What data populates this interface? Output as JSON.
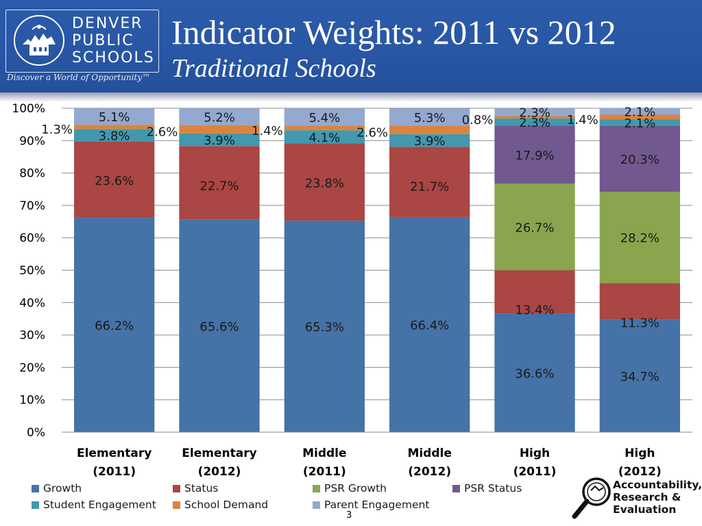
{
  "header": {
    "title": "Indicator Weights: 2011 vs 2012",
    "subtitle": "Traditional Schools",
    "logo_lines": [
      "DENVER",
      "PUBLIC",
      "SCHOOLS"
    ],
    "logo_tagline": "Discover a World of Opportunity™"
  },
  "footer": {
    "page_number": "3",
    "are_logo_lines": [
      "Accountability,",
      "Research &",
      "Evaluation"
    ]
  },
  "colors": {
    "header_bg": "#2856a4",
    "Growth": "#4572a7",
    "Status": "#aa4643",
    "PSR Growth": "#89a54e",
    "PSR Status": "#71588f",
    "Student Engagement": "#4198af",
    "School Demand": "#db843d",
    "Parent Engagement": "#93a9cf"
  },
  "chart_data": {
    "type": "bar",
    "stacked": true,
    "categories": [
      "Elementary\n(2011)",
      "Elementary\n(2012)",
      "Middle\n(2011)",
      "Middle\n(2012)",
      "High\n(2011)",
      "High\n(2012)"
    ],
    "series": [
      {
        "name": "Growth",
        "values": [
          66.2,
          65.6,
          65.3,
          66.4,
          36.6,
          34.7
        ],
        "labels": [
          "66.2%",
          "65.6%",
          "65.3%",
          "66.4%",
          "36.6%",
          "34.7%"
        ]
      },
      {
        "name": "Status",
        "values": [
          23.6,
          22.7,
          23.8,
          21.7,
          13.4,
          11.3
        ],
        "labels": [
          "23.6%",
          "22.7%",
          "23.8%",
          "21.7%",
          "13.4%",
          "11.3%"
        ]
      },
      {
        "name": "PSR Growth",
        "values": [
          0,
          0,
          0,
          0,
          26.7,
          28.2
        ],
        "labels": [
          "",
          "",
          "",
          "",
          "26.7%",
          "28.2%"
        ]
      },
      {
        "name": "PSR Status",
        "values": [
          0,
          0,
          0,
          0,
          17.9,
          20.3
        ],
        "labels": [
          "",
          "",
          "",
          "",
          "17.9%",
          "20.3%"
        ]
      },
      {
        "name": "Student Engagement",
        "values": [
          3.8,
          3.9,
          4.1,
          3.9,
          2.3,
          2.1
        ],
        "labels": [
          "3.8%",
          "3.9%",
          "4.1%",
          "3.9%",
          "2.3%",
          "2.1%"
        ]
      },
      {
        "name": "School Demand",
        "values": [
          1.3,
          2.6,
          1.4,
          2.6,
          0.8,
          1.4
        ],
        "labels": [
          "1.3%",
          "2.6%",
          "1.4%",
          "2.6%",
          "0.8%",
          "1.4%"
        ]
      },
      {
        "name": "Parent Engagement",
        "values": [
          5.1,
          5.2,
          5.4,
          5.3,
          2.3,
          2.1
        ],
        "labels": [
          "5.1%",
          "5.2%",
          "5.4%",
          "5.3%",
          "2.3%",
          "2.1%"
        ]
      }
    ],
    "ylim": [
      0,
      100
    ],
    "yticks": [
      "0%",
      "10%",
      "20%",
      "30%",
      "40%",
      "50%",
      "60%",
      "70%",
      "80%",
      "90%",
      "100%"
    ],
    "grid": true,
    "legend_position": "bottom"
  }
}
